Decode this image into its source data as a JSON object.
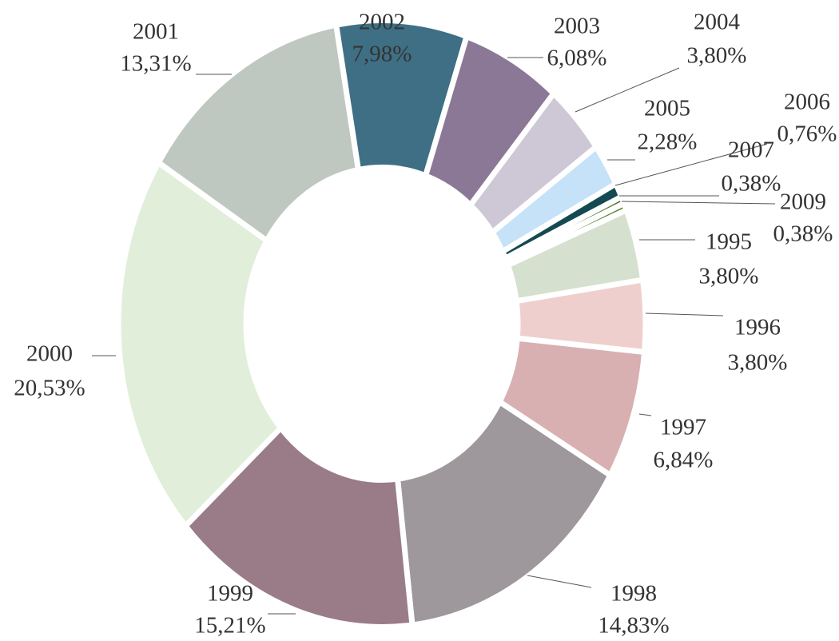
{
  "chart_data": {
    "type": "donut",
    "categories": [
      "1995",
      "1996",
      "1997",
      "1998",
      "1999",
      "2000",
      "2001",
      "2002",
      "2003",
      "2004",
      "2005",
      "2006",
      "2007",
      "2009"
    ],
    "values": [
      3.8,
      3.8,
      6.84,
      14.83,
      15.21,
      20.53,
      13.31,
      7.98,
      6.08,
      3.8,
      2.28,
      0.76,
      0.38,
      0.38
    ],
    "value_labels": [
      "3,80%",
      "3,80%",
      "6,84%",
      "14,83%",
      "15,21%",
      "20,53%",
      "13,31%",
      "7,98%",
      "6,08%",
      "3,80%",
      "2,28%",
      "0,76%",
      "0,38%",
      "0,38%"
    ],
    "colors": [
      "#d5e0cf",
      "#efcfcd",
      "#d8b0b2",
      "#9e979c",
      "#9a7b88",
      "#e1eed9",
      "#bec8c0",
      "#3e6f84",
      "#8b7896",
      "#cec7d6",
      "#c5e2f8",
      "#144a52",
      "#4f7a32",
      "#5a8a3a"
    ]
  }
}
